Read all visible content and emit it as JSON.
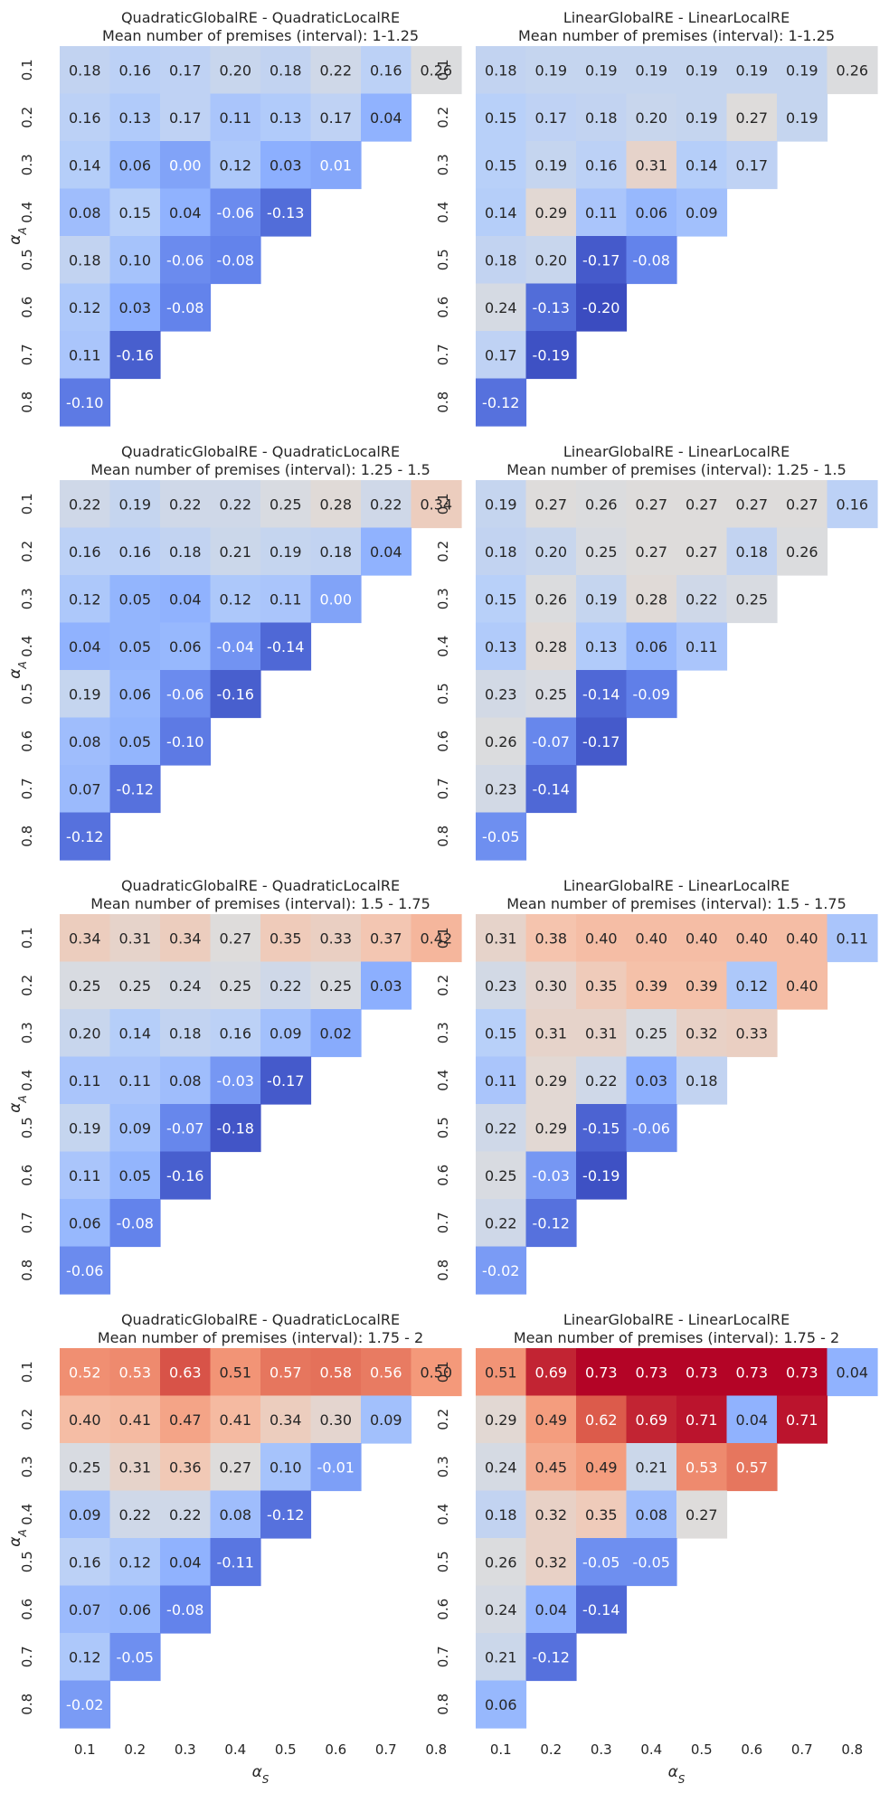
{
  "chart_data": [
    {
      "type": "heatmap",
      "title": [
        "QuadraticGlobalRE - QuadraticLocalRE",
        "Mean number of premises (interval): 1-1.25"
      ],
      "x_ticks": [
        "0.1",
        "0.2",
        "0.3",
        "0.4",
        "0.5",
        "0.6",
        "0.7",
        "0.8"
      ],
      "y_ticks": [
        "0.1",
        "0.2",
        "0.3",
        "0.4",
        "0.5",
        "0.6",
        "0.7",
        "0.8"
      ],
      "xlabel": "",
      "ylabel": "α_A",
      "values": [
        [
          "0.18",
          "0.16",
          "0.17",
          "0.20",
          "0.18",
          "0.22",
          "0.16",
          "0.26"
        ],
        [
          "0.16",
          "0.13",
          "0.17",
          "0.11",
          "0.13",
          "0.17",
          "0.04"
        ],
        [
          "0.14",
          "0.06",
          "0.00",
          "0.12",
          "0.03",
          "0.01"
        ],
        [
          "0.08",
          "0.15",
          "0.04",
          "-0.06",
          "-0.13"
        ],
        [
          "0.18",
          "0.10",
          "-0.06",
          "-0.08"
        ],
        [
          "0.12",
          "0.03",
          "-0.08"
        ],
        [
          "0.11",
          "-0.16"
        ],
        [
          "-0.10"
        ]
      ]
    },
    {
      "type": "heatmap",
      "title": [
        "LinearGlobalRE - LinearLocalRE",
        "Mean number of premises (interval): 1-1.25"
      ],
      "x_ticks": [
        "0.1",
        "0.2",
        "0.3",
        "0.4",
        "0.5",
        "0.6",
        "0.7",
        "0.8"
      ],
      "y_ticks": [
        "0.1",
        "0.2",
        "0.3",
        "0.4",
        "0.5",
        "0.6",
        "0.7",
        "0.8"
      ],
      "xlabel": "",
      "ylabel": "",
      "values": [
        [
          "0.18",
          "0.19",
          "0.19",
          "0.19",
          "0.19",
          "0.19",
          "0.19",
          "0.26"
        ],
        [
          "0.15",
          "0.17",
          "0.18",
          "0.20",
          "0.19",
          "0.27",
          "0.19"
        ],
        [
          "0.15",
          "0.19",
          "0.16",
          "0.31",
          "0.14",
          "0.17"
        ],
        [
          "0.14",
          "0.29",
          "0.11",
          "0.06",
          "0.09"
        ],
        [
          "0.18",
          "0.20",
          "-0.17",
          "-0.08"
        ],
        [
          "0.24",
          "-0.13",
          "-0.20"
        ],
        [
          "0.17",
          "-0.19"
        ],
        [
          "-0.12"
        ]
      ]
    },
    {
      "type": "heatmap",
      "title": [
        "QuadraticGlobalRE - QuadraticLocalRE",
        "Mean number of premises (interval): 1.25 - 1.5"
      ],
      "x_ticks": [
        "0.1",
        "0.2",
        "0.3",
        "0.4",
        "0.5",
        "0.6",
        "0.7",
        "0.8"
      ],
      "y_ticks": [
        "0.1",
        "0.2",
        "0.3",
        "0.4",
        "0.5",
        "0.6",
        "0.7",
        "0.8"
      ],
      "xlabel": "",
      "ylabel": "α_A",
      "values": [
        [
          "0.22",
          "0.19",
          "0.22",
          "0.22",
          "0.25",
          "0.28",
          "0.22",
          "0.34"
        ],
        [
          "0.16",
          "0.16",
          "0.18",
          "0.21",
          "0.19",
          "0.18",
          "0.04"
        ],
        [
          "0.12",
          "0.05",
          "0.04",
          "0.12",
          "0.11",
          "0.00"
        ],
        [
          "0.04",
          "0.05",
          "0.06",
          "-0.04",
          "-0.14"
        ],
        [
          "0.19",
          "0.06",
          "-0.06",
          "-0.16"
        ],
        [
          "0.08",
          "0.05",
          "-0.10"
        ],
        [
          "0.07",
          "-0.12"
        ],
        [
          "-0.12"
        ]
      ]
    },
    {
      "type": "heatmap",
      "title": [
        "LinearGlobalRE - LinearLocalRE",
        "Mean number of premises (interval): 1.25 - 1.5"
      ],
      "x_ticks": [
        "0.1",
        "0.2",
        "0.3",
        "0.4",
        "0.5",
        "0.6",
        "0.7",
        "0.8"
      ],
      "y_ticks": [
        "0.1",
        "0.2",
        "0.3",
        "0.4",
        "0.5",
        "0.6",
        "0.7",
        "0.8"
      ],
      "xlabel": "",
      "ylabel": "",
      "values": [
        [
          "0.19",
          "0.27",
          "0.26",
          "0.27",
          "0.27",
          "0.27",
          "0.27",
          "0.16"
        ],
        [
          "0.18",
          "0.20",
          "0.25",
          "0.27",
          "0.27",
          "0.18",
          "0.26"
        ],
        [
          "0.15",
          "0.26",
          "0.19",
          "0.28",
          "0.22",
          "0.25"
        ],
        [
          "0.13",
          "0.28",
          "0.13",
          "0.06",
          "0.11"
        ],
        [
          "0.23",
          "0.25",
          "-0.14",
          "-0.09"
        ],
        [
          "0.26",
          "-0.07",
          "-0.17"
        ],
        [
          "0.23",
          "-0.14"
        ],
        [
          "-0.05"
        ]
      ]
    },
    {
      "type": "heatmap",
      "title": [
        "QuadraticGlobalRE - QuadraticLocalRE",
        "Mean number of premises (interval): 1.5 - 1.75"
      ],
      "x_ticks": [
        "0.1",
        "0.2",
        "0.3",
        "0.4",
        "0.5",
        "0.6",
        "0.7",
        "0.8"
      ],
      "y_ticks": [
        "0.1",
        "0.2",
        "0.3",
        "0.4",
        "0.5",
        "0.6",
        "0.7",
        "0.8"
      ],
      "xlabel": "",
      "ylabel": "α_A",
      "values": [
        [
          "0.34",
          "0.31",
          "0.34",
          "0.27",
          "0.35",
          "0.33",
          "0.37",
          "0.42"
        ],
        [
          "0.25",
          "0.25",
          "0.24",
          "0.25",
          "0.22",
          "0.25",
          "0.03"
        ],
        [
          "0.20",
          "0.14",
          "0.18",
          "0.16",
          "0.09",
          "0.02"
        ],
        [
          "0.11",
          "0.11",
          "0.08",
          "-0.03",
          "-0.17"
        ],
        [
          "0.19",
          "0.09",
          "-0.07",
          "-0.18"
        ],
        [
          "0.11",
          "0.05",
          "-0.16"
        ],
        [
          "0.06",
          "-0.08"
        ],
        [
          "-0.06"
        ]
      ]
    },
    {
      "type": "heatmap",
      "title": [
        "LinearGlobalRE - LinearLocalRE",
        "Mean number of premises (interval): 1.5 - 1.75"
      ],
      "x_ticks": [
        "0.1",
        "0.2",
        "0.3",
        "0.4",
        "0.5",
        "0.6",
        "0.7",
        "0.8"
      ],
      "y_ticks": [
        "0.1",
        "0.2",
        "0.3",
        "0.4",
        "0.5",
        "0.6",
        "0.7",
        "0.8"
      ],
      "xlabel": "",
      "ylabel": "",
      "values": [
        [
          "0.31",
          "0.38",
          "0.40",
          "0.40",
          "0.40",
          "0.40",
          "0.40",
          "0.11"
        ],
        [
          "0.23",
          "0.30",
          "0.35",
          "0.39",
          "0.39",
          "0.12",
          "0.40"
        ],
        [
          "0.15",
          "0.31",
          "0.31",
          "0.25",
          "0.32",
          "0.33"
        ],
        [
          "0.11",
          "0.29",
          "0.22",
          "0.03",
          "0.18"
        ],
        [
          "0.22",
          "0.29",
          "-0.15",
          "-0.06"
        ],
        [
          "0.25",
          "-0.03",
          "-0.19"
        ],
        [
          "0.22",
          "-0.12"
        ],
        [
          "-0.02"
        ]
      ]
    },
    {
      "type": "heatmap",
      "title": [
        "QuadraticGlobalRE - QuadraticLocalRE",
        "Mean number of premises (interval): 1.75 - 2"
      ],
      "x_ticks": [
        "0.1",
        "0.2",
        "0.3",
        "0.4",
        "0.5",
        "0.6",
        "0.7",
        "0.8"
      ],
      "y_ticks": [
        "0.1",
        "0.2",
        "0.3",
        "0.4",
        "0.5",
        "0.6",
        "0.7",
        "0.8"
      ],
      "xlabel": "α_S",
      "ylabel": "α_A",
      "values": [
        [
          "0.52",
          "0.53",
          "0.63",
          "0.51",
          "0.57",
          "0.58",
          "0.56",
          "0.50"
        ],
        [
          "0.40",
          "0.41",
          "0.47",
          "0.41",
          "0.34",
          "0.30",
          "0.09"
        ],
        [
          "0.25",
          "0.31",
          "0.36",
          "0.27",
          "0.10",
          "-0.01"
        ],
        [
          "0.09",
          "0.22",
          "0.22",
          "0.08",
          "-0.12"
        ],
        [
          "0.16",
          "0.12",
          "0.04",
          "-0.11"
        ],
        [
          "0.07",
          "0.06",
          "-0.08"
        ],
        [
          "0.12",
          "-0.05"
        ],
        [
          "-0.02"
        ]
      ]
    },
    {
      "type": "heatmap",
      "title": [
        "LinearGlobalRE - LinearLocalRE",
        "Mean number of premises (interval): 1.75 - 2"
      ],
      "x_ticks": [
        "0.1",
        "0.2",
        "0.3",
        "0.4",
        "0.5",
        "0.6",
        "0.7",
        "0.8"
      ],
      "y_ticks": [
        "0.1",
        "0.2",
        "0.3",
        "0.4",
        "0.5",
        "0.6",
        "0.7",
        "0.8"
      ],
      "xlabel": "α_S",
      "ylabel": "",
      "values": [
        [
          "0.51",
          "0.69",
          "0.73",
          "0.73",
          "0.73",
          "0.73",
          "0.73",
          "0.04"
        ],
        [
          "0.29",
          "0.49",
          "0.62",
          "0.69",
          "0.71",
          "0.04",
          "0.71"
        ],
        [
          "0.24",
          "0.45",
          "0.49",
          "0.21",
          "0.53",
          "0.57"
        ],
        [
          "0.18",
          "0.32",
          "0.35",
          "0.08",
          "0.27"
        ],
        [
          "0.26",
          "0.32",
          "-0.05",
          "-0.05"
        ],
        [
          "0.24",
          "0.04",
          "-0.14"
        ],
        [
          "0.21",
          "-0.12"
        ],
        [
          "0.06"
        ]
      ]
    }
  ]
}
